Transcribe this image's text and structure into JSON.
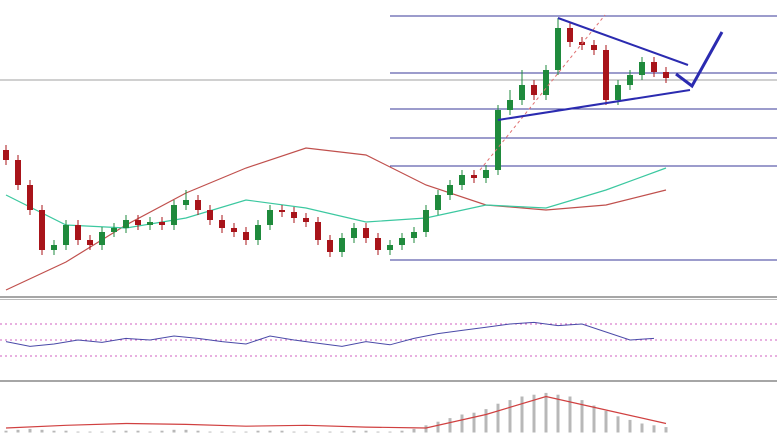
{
  "chart_data": [
    {
      "type": "candlestick",
      "xlim": [
        -0.5,
        64.25
      ],
      "ylim": [
        0,
        297
      ],
      "up_color": "#1f8a3c",
      "down_color": "#a8141a",
      "open": [
        147,
        137,
        112,
        87,
        47,
        52,
        72,
        57,
        52,
        65,
        69,
        77,
        72,
        75,
        72,
        92,
        97,
        87,
        77,
        69,
        65,
        57,
        72,
        87,
        85,
        79,
        75,
        57,
        45,
        59,
        69,
        59,
        47,
        52,
        59,
        65,
        87,
        102,
        112,
        122,
        119,
        127,
        187,
        197,
        212,
        202,
        227,
        269,
        255,
        252,
        247,
        197,
        212,
        222,
        235,
        225
      ],
      "high": [
        152,
        142,
        117,
        92,
        57,
        77,
        77,
        62,
        70,
        74,
        82,
        82,
        80,
        80,
        97,
        107,
        102,
        92,
        82,
        74,
        70,
        77,
        92,
        92,
        90,
        84,
        80,
        62,
        64,
        74,
        74,
        64,
        57,
        64,
        70,
        92,
        107,
        117,
        127,
        127,
        132,
        192,
        207,
        227,
        217,
        232,
        279,
        274,
        260,
        257,
        252,
        217,
        227,
        240,
        240,
        230
      ],
      "low": [
        132,
        107,
        82,
        42,
        42,
        47,
        52,
        47,
        47,
        60,
        64,
        67,
        67,
        67,
        67,
        87,
        82,
        72,
        64,
        60,
        52,
        52,
        67,
        80,
        74,
        70,
        52,
        40,
        40,
        54,
        54,
        42,
        42,
        47,
        54,
        60,
        82,
        97,
        107,
        114,
        114,
        122,
        182,
        192,
        197,
        197,
        222,
        250,
        247,
        242,
        192,
        192,
        207,
        217,
        220,
        214
      ],
      "close": [
        137,
        112,
        87,
        47,
        52,
        72,
        57,
        52,
        65,
        69,
        77,
        72,
        75,
        72,
        92,
        97,
        87,
        77,
        69,
        65,
        57,
        72,
        87,
        85,
        79,
        75,
        57,
        45,
        59,
        69,
        59,
        47,
        52,
        59,
        65,
        87,
        102,
        112,
        122,
        119,
        127,
        187,
        197,
        212,
        202,
        227,
        269,
        255,
        252,
        247,
        197,
        212,
        222,
        235,
        225,
        219
      ],
      "series": [
        {
          "color": "#c0504d",
          "x": [
            0,
            5,
            10,
            15,
            20,
            25,
            30,
            35,
            40,
            45,
            50,
            55
          ],
          "values": [
            7,
            35,
            72,
            104,
            129,
            149,
            142,
            112,
            92,
            87,
            92,
            107
          ]
        },
        {
          "color": "#3cc8a0",
          "x": [
            0,
            5,
            10,
            15,
            20,
            25,
            30,
            35,
            40,
            45,
            50,
            55
          ],
          "values": [
            102,
            72,
            69,
            79,
            97,
            89,
            75,
            79,
            92,
            89,
            107,
            129
          ]
        }
      ],
      "levels": [
        281,
        224,
        188,
        159,
        131,
        37
      ],
      "level_color": "#3a3a9a",
      "reference": 217,
      "reference_color": "#a0a0a0"
    },
    {
      "type": "line",
      "xlim": [
        -0.5,
        64.25
      ],
      "ylim": [
        0,
        100
      ],
      "color": "#4a4aa8",
      "x": [
        0,
        2,
        4,
        6,
        8,
        10,
        12,
        14,
        16,
        18,
        20,
        22,
        24,
        26,
        28,
        30,
        32,
        34,
        36,
        38,
        40,
        42,
        44,
        46,
        48,
        50,
        52,
        54
      ],
      "values": [
        48,
        42,
        45,
        50,
        47,
        52,
        50,
        55,
        52,
        48,
        45,
        55,
        50,
        46,
        42,
        48,
        44,
        52,
        58,
        62,
        66,
        70,
        72,
        68,
        70,
        60,
        50,
        52
      ],
      "levels": [
        30,
        50,
        70
      ],
      "level_color": "#d060c0"
    },
    {
      "type": "macd",
      "xlim": [
        -0.5,
        64.25
      ],
      "ylim": [
        -5,
        55
      ],
      "bar_color": "#b8b8b8",
      "line_color": "#d04040",
      "histogram": [
        2,
        3,
        4,
        3,
        2,
        2,
        1,
        1,
        1,
        2,
        2,
        2,
        1,
        2,
        3,
        3,
        2,
        1,
        1,
        1,
        1,
        2,
        2,
        2,
        1,
        1,
        1,
        1,
        1,
        2,
        2,
        1,
        1,
        2,
        4,
        8,
        12,
        16,
        20,
        22,
        26,
        32,
        36,
        40,
        42,
        44,
        42,
        40,
        36,
        30,
        24,
        18,
        14,
        10,
        8,
        6
      ],
      "signal_x": [
        0,
        5,
        10,
        15,
        20,
        25,
        30,
        35,
        40,
        45,
        50,
        55
      ],
      "signal": [
        5,
        8,
        10,
        9,
        7,
        8,
        6,
        5,
        20,
        40,
        25,
        10
      ]
    }
  ]
}
